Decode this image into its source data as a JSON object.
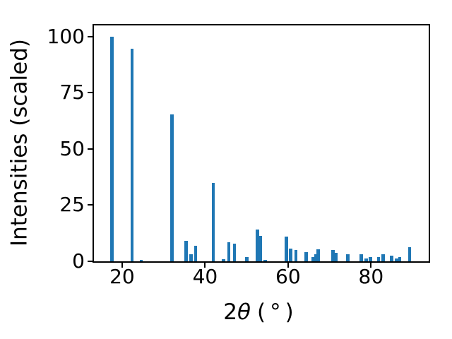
{
  "figure": {
    "background": "#ffffff",
    "spine_color": "#000000",
    "text_color": "#000000"
  },
  "chart_data": {
    "type": "bar",
    "title": "",
    "xlabel": "2θ (°)",
    "xlabel_parts": {
      "prefix": "2",
      "theta": "θ",
      "unit": "(°)"
    },
    "ylabel": "Intensities (scaled)",
    "xlim": [
      13.2,
      93.9
    ],
    "ylim": [
      0,
      105
    ],
    "xticks": [
      20,
      40,
      60,
      80
    ],
    "yticks": [
      0,
      25,
      50,
      75,
      100
    ],
    "grid": false,
    "legend_position": "none",
    "bar_color": "#1f77b4",
    "bar_width_x": 0.8,
    "x": [
      17.5,
      22.4,
      24.6,
      32.0,
      35.4,
      36.6,
      37.7,
      42.0,
      44.4,
      45.7,
      47.1,
      50.1,
      52.6,
      53.4,
      54.5,
      59.6,
      60.6,
      61.9,
      64.4,
      66.1,
      66.7,
      67.3,
      70.8,
      71.6,
      74.4,
      77.6,
      78.8,
      79.9,
      81.8,
      82.9,
      85.0,
      86.2,
      86.9,
      89.3
    ],
    "values": [
      100,
      94.5,
      0.6,
      65.3,
      9.0,
      3.3,
      6.8,
      35.0,
      1.1,
      8.5,
      7.8,
      1.9,
      14.3,
      11.3,
      0.5,
      11.0,
      5.7,
      5.0,
      4.0,
      2.0,
      3.3,
      5.4,
      5.0,
      3.7,
      3.0,
      3.3,
      1.3,
      2.0,
      2.0,
      3.0,
      2.6,
      1.4,
      1.9,
      6.3
    ]
  }
}
